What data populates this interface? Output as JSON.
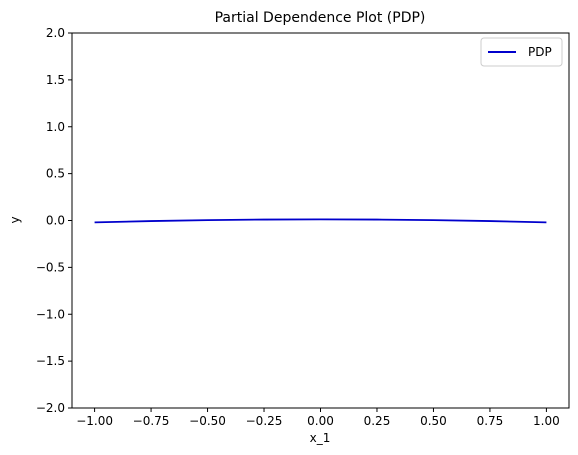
{
  "chart_data": {
    "type": "line",
    "title": "Partial Dependence Plot (PDP)",
    "xlabel": "x_1",
    "ylabel": "y",
    "xlim": [
      -1.1,
      1.1
    ],
    "ylim": [
      -2.0,
      2.0
    ],
    "xticks": [
      -1.0,
      -0.75,
      -0.5,
      -0.25,
      0.0,
      0.25,
      0.5,
      0.75,
      1.0
    ],
    "xtick_labels": [
      "−1.00",
      "−0.75",
      "−0.50",
      "−0.25",
      "0.00",
      "0.25",
      "0.50",
      "0.75",
      "1.00"
    ],
    "yticks": [
      -2.0,
      -1.5,
      -1.0,
      -0.5,
      0.0,
      0.5,
      1.0,
      1.5,
      2.0
    ],
    "ytick_labels": [
      "−2.0",
      "−1.5",
      "−1.0",
      "−0.5",
      "0.0",
      "0.5",
      "1.0",
      "1.5",
      "2.0"
    ],
    "grid": false,
    "legend_position": "top-right",
    "series": [
      {
        "name": "PDP",
        "color": "#0000cc",
        "x": [
          -1.0,
          -0.75,
          -0.5,
          -0.25,
          0.0,
          0.25,
          0.5,
          0.75,
          1.0
        ],
        "y": [
          -0.02,
          -0.006,
          0.004,
          0.01,
          0.012,
          0.01,
          0.004,
          -0.006,
          -0.02
        ]
      }
    ]
  }
}
